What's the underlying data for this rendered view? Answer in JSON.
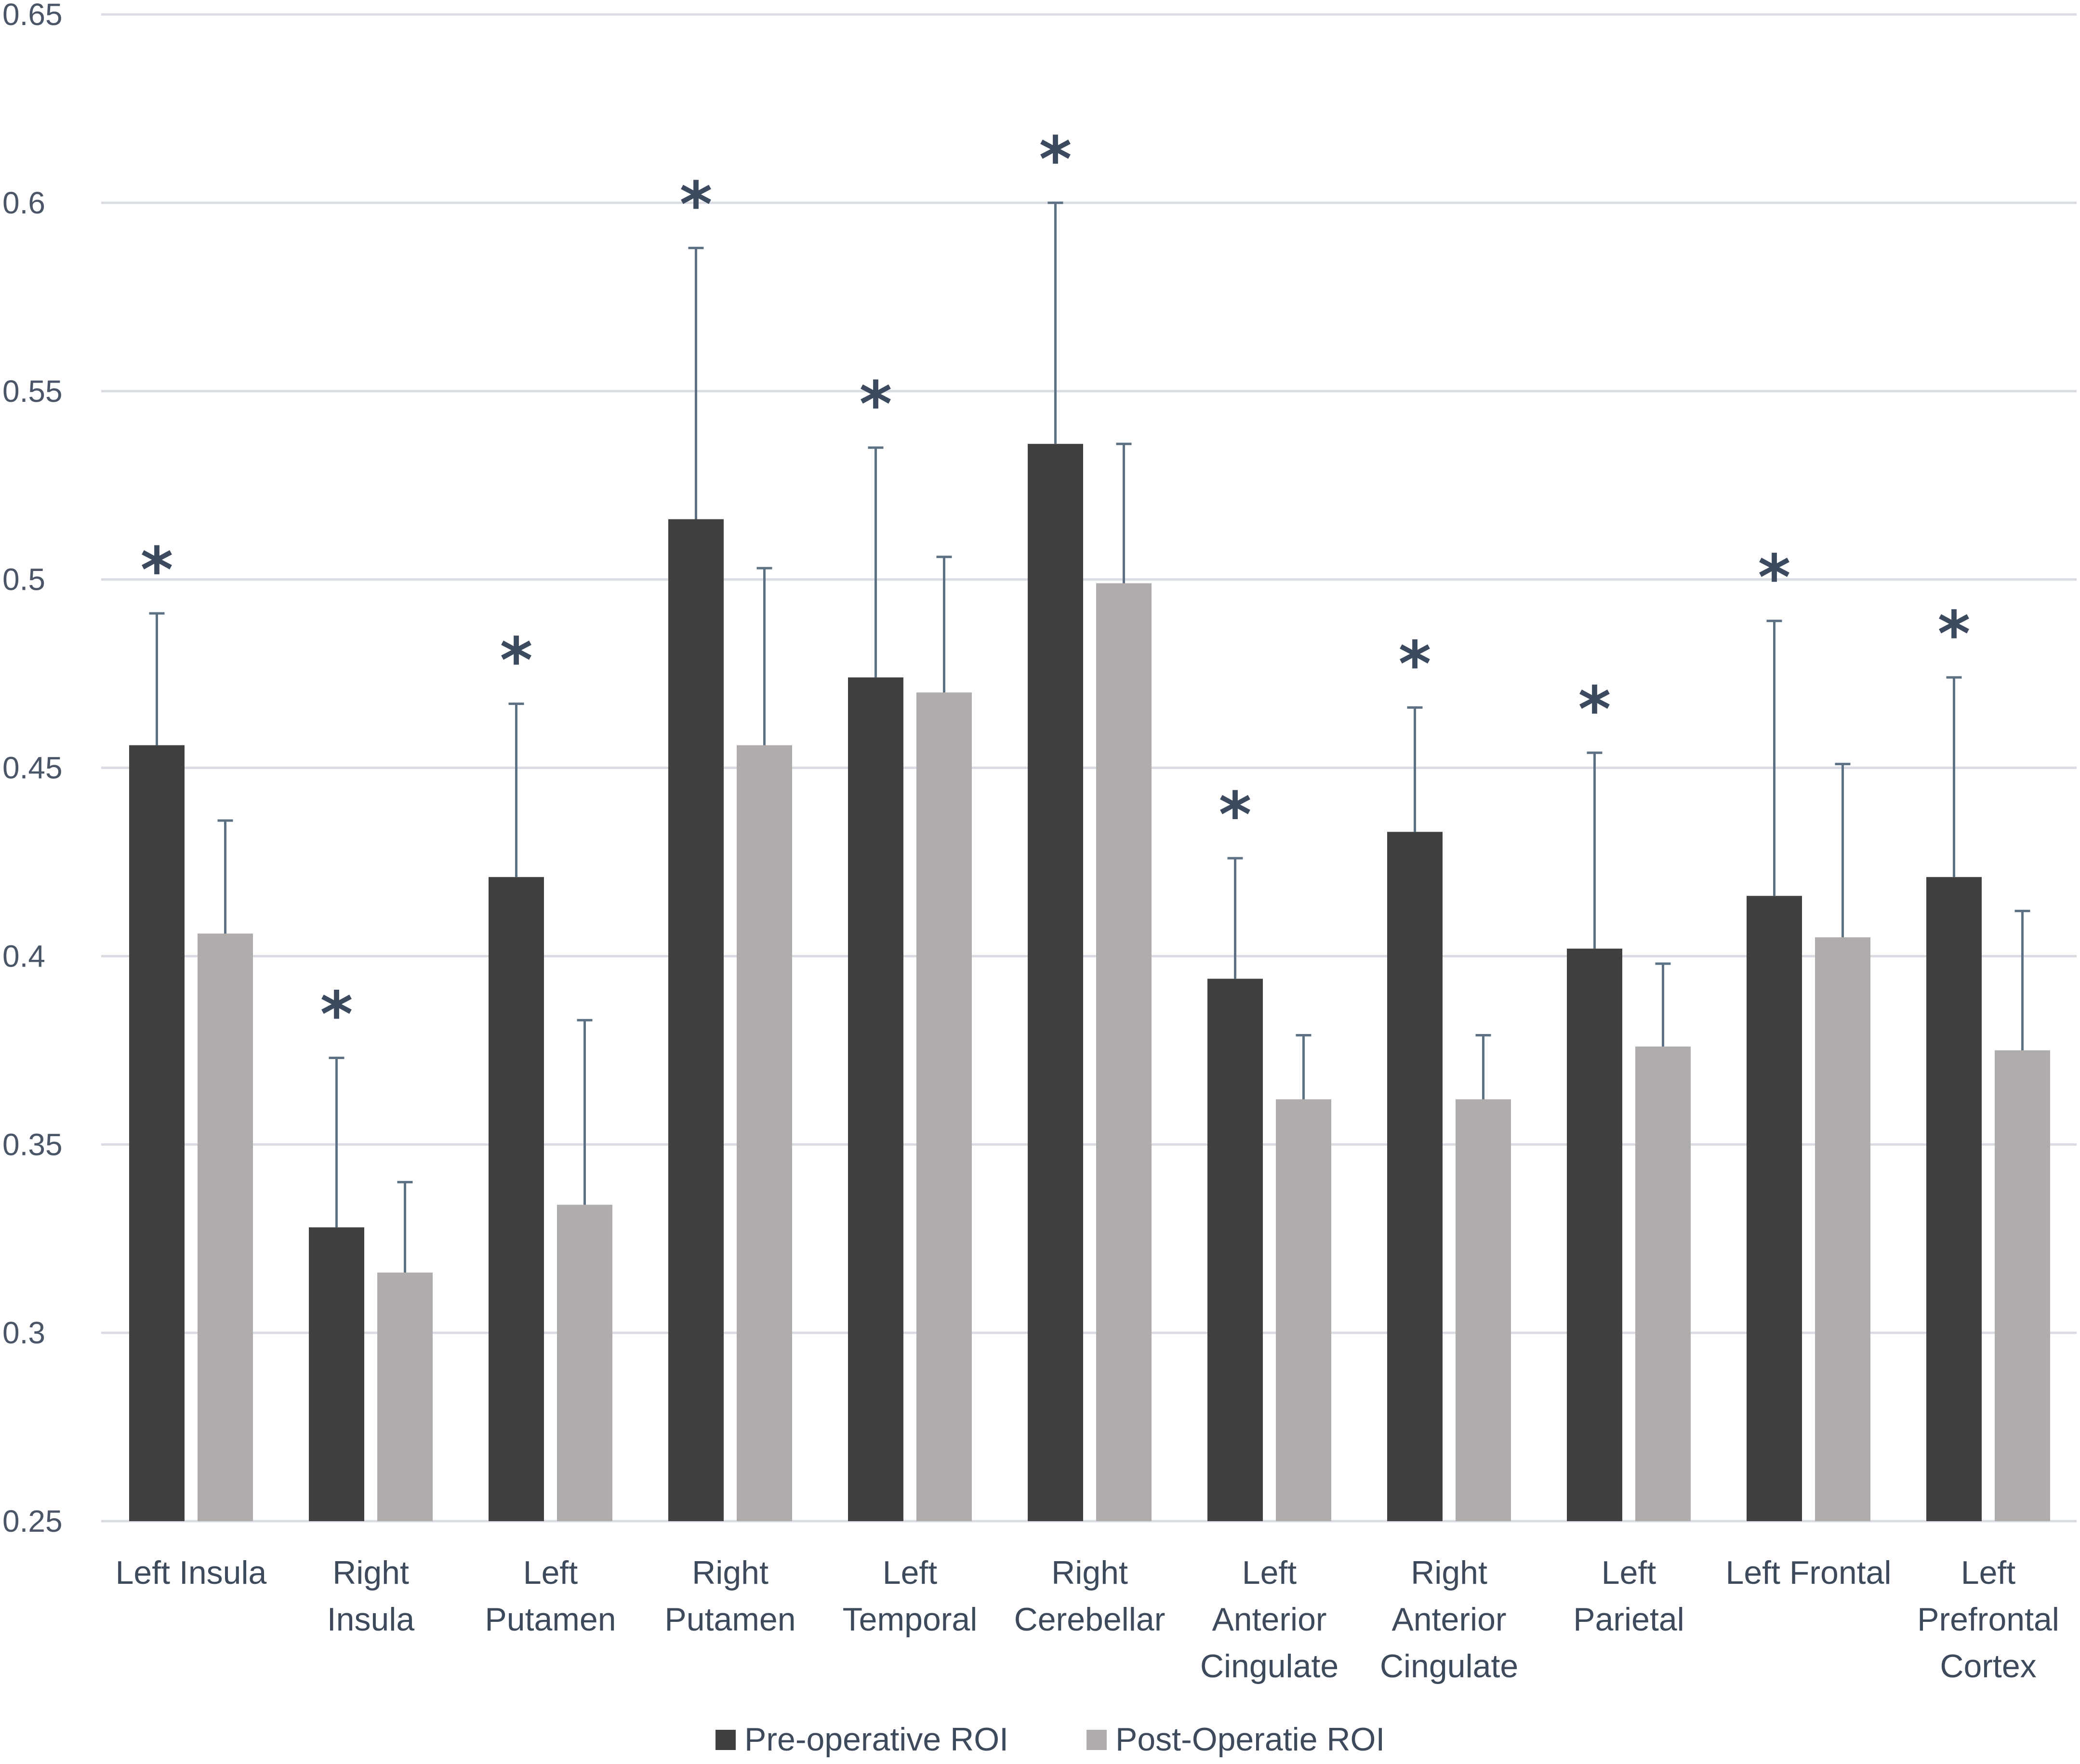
{
  "chart_data": {
    "type": "bar",
    "title": "",
    "xlabel": "",
    "ylabel": "",
    "ylim": [
      0.25,
      0.65
    ],
    "yticks": [
      "0.25",
      "0.3",
      "0.35",
      "0.4",
      "0.45",
      "0.5",
      "0.55",
      "0.6",
      "0.65"
    ],
    "grid": true,
    "legend_position": "bottom",
    "categories": [
      [
        "Left Insula"
      ],
      [
        "Right",
        "Insula"
      ],
      [
        "Left",
        "Putamen"
      ],
      [
        "Right",
        "Putamen"
      ],
      [
        "Left",
        "Temporal"
      ],
      [
        "Right",
        "Cerebellar"
      ],
      [
        "Left",
        "Anterior",
        "Cingulate"
      ],
      [
        "Right",
        "Anterior",
        "Cingulate"
      ],
      [
        "Left",
        "Parietal"
      ],
      [
        "Left Frontal"
      ],
      [
        "Left",
        "Prefrontal",
        "Cortex"
      ]
    ],
    "series": [
      {
        "name": "Pre-operative ROI",
        "color": "#404040",
        "values": [
          0.456,
          0.328,
          0.421,
          0.516,
          0.474,
          0.536,
          0.394,
          0.433,
          0.402,
          0.416,
          0.421
        ],
        "error_upper": [
          0.491,
          0.373,
          0.467,
          0.588,
          0.535,
          0.6,
          0.426,
          0.466,
          0.454,
          0.489,
          0.474
        ]
      },
      {
        "name": "Post-Operatie ROI",
        "color": "#afacab",
        "values": [
          0.406,
          0.316,
          0.334,
          0.456,
          0.47,
          0.499,
          0.362,
          0.362,
          0.376,
          0.405,
          0.375
        ],
        "error_upper": [
          0.436,
          0.34,
          0.383,
          0.503,
          0.506,
          0.536,
          0.379,
          0.379,
          0.398,
          0.451,
          0.412
        ]
      }
    ],
    "annotations": {
      "marker": "*",
      "significant": [
        true,
        true,
        true,
        true,
        true,
        true,
        true,
        true,
        true,
        true,
        true
      ]
    },
    "colors": {
      "grid": "#d9dde3",
      "error_bar": "#5d7185",
      "axis_text": "#4a5568",
      "star": "#3b4a5e"
    }
  }
}
